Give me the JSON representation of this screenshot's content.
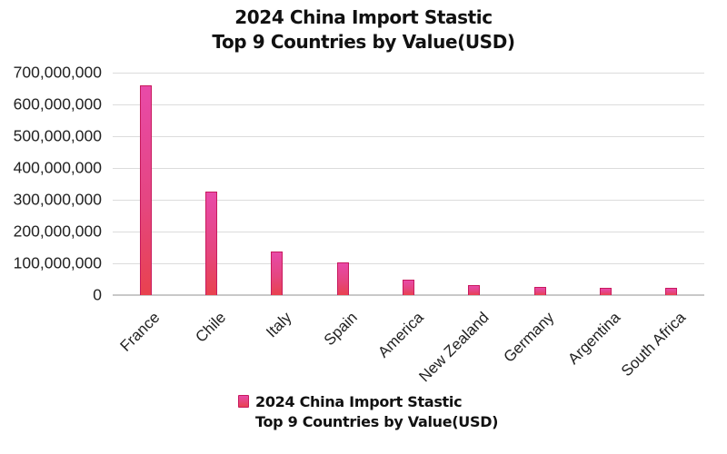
{
  "chart_data": {
    "type": "bar",
    "title": [
      "2024 China Import Stastic",
      "Top 9 Countries by Value(USD)"
    ],
    "xlabel": "",
    "ylabel": "",
    "categories": [
      "France",
      "Chile",
      "Italy",
      "Spain",
      "America",
      "New Zealand",
      "Germany",
      "Argentina",
      "South Africa"
    ],
    "series": [
      {
        "name": "2024 China Import Stastic Top 9 Countries by Value(USD)",
        "values": [
          661000000,
          327000000,
          136000000,
          102000000,
          49000000,
          31000000,
          26000000,
          22000000,
          22000000
        ],
        "color": "#e84a8c"
      }
    ],
    "ylim": [
      0,
      700000000
    ],
    "yticks": [
      "0",
      "100,000,000",
      "200,000,000",
      "300,000,000",
      "400,000,000",
      "500,000,000",
      "600,000,000",
      "700,000,000"
    ],
    "grid": true,
    "legend_position": "bottom"
  },
  "title": {
    "line1": "2024 China Import Stastic",
    "line2": "Top 9 Countries by Value(USD)"
  },
  "legend": {
    "line1": "2024 China Import Stastic",
    "line2": "Top 9 Countries by Value(USD)"
  }
}
